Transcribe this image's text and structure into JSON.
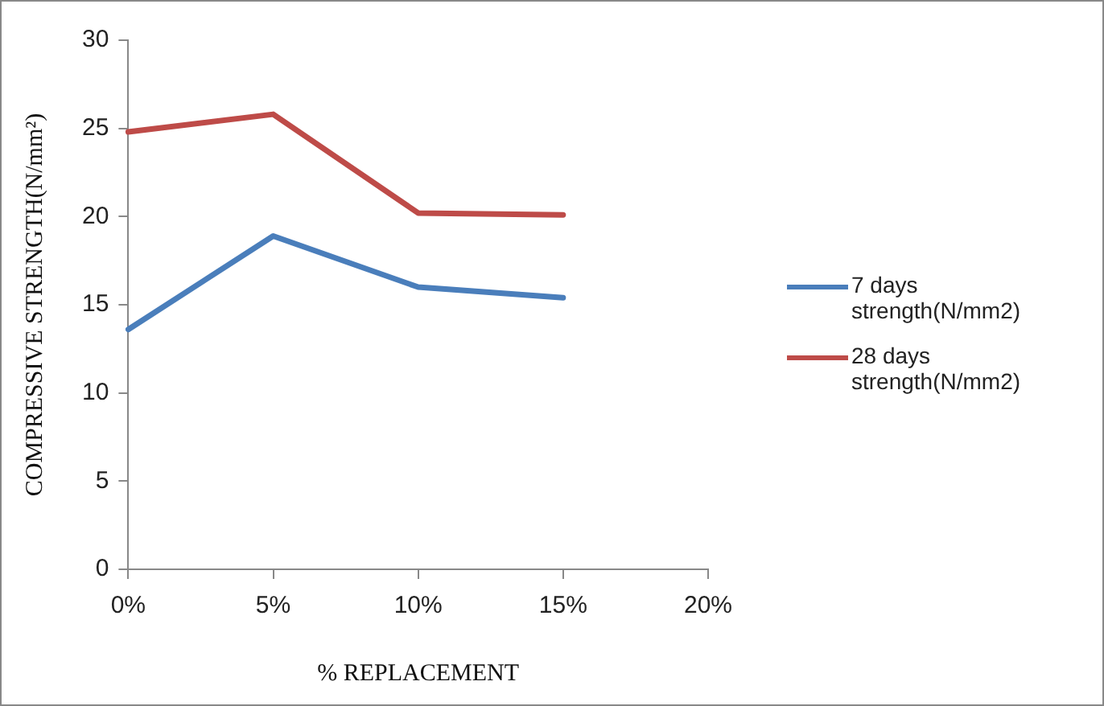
{
  "chart_data": {
    "type": "line",
    "xlabel": "% REPLACEMENT",
    "ylabel": "COMPRESSIVE STRENGTH(N/mm²)",
    "categories": [
      "0%",
      "5%",
      "10%",
      "15%",
      "20%"
    ],
    "series": [
      {
        "name": "7 days strength(N/mm2)",
        "color": "#4a7ebb",
        "values": [
          13.6,
          18.9,
          16.0,
          15.4,
          null
        ]
      },
      {
        "name": "28 days strength(N/mm2)",
        "color": "#be4b48",
        "values": [
          24.8,
          25.8,
          20.2,
          20.1,
          null
        ]
      }
    ],
    "ylim": [
      0,
      30
    ],
    "yticks": [
      0,
      5,
      10,
      15,
      20,
      25,
      30
    ],
    "grid": false,
    "legend": "right",
    "marker": "none",
    "line_style": "solid"
  }
}
